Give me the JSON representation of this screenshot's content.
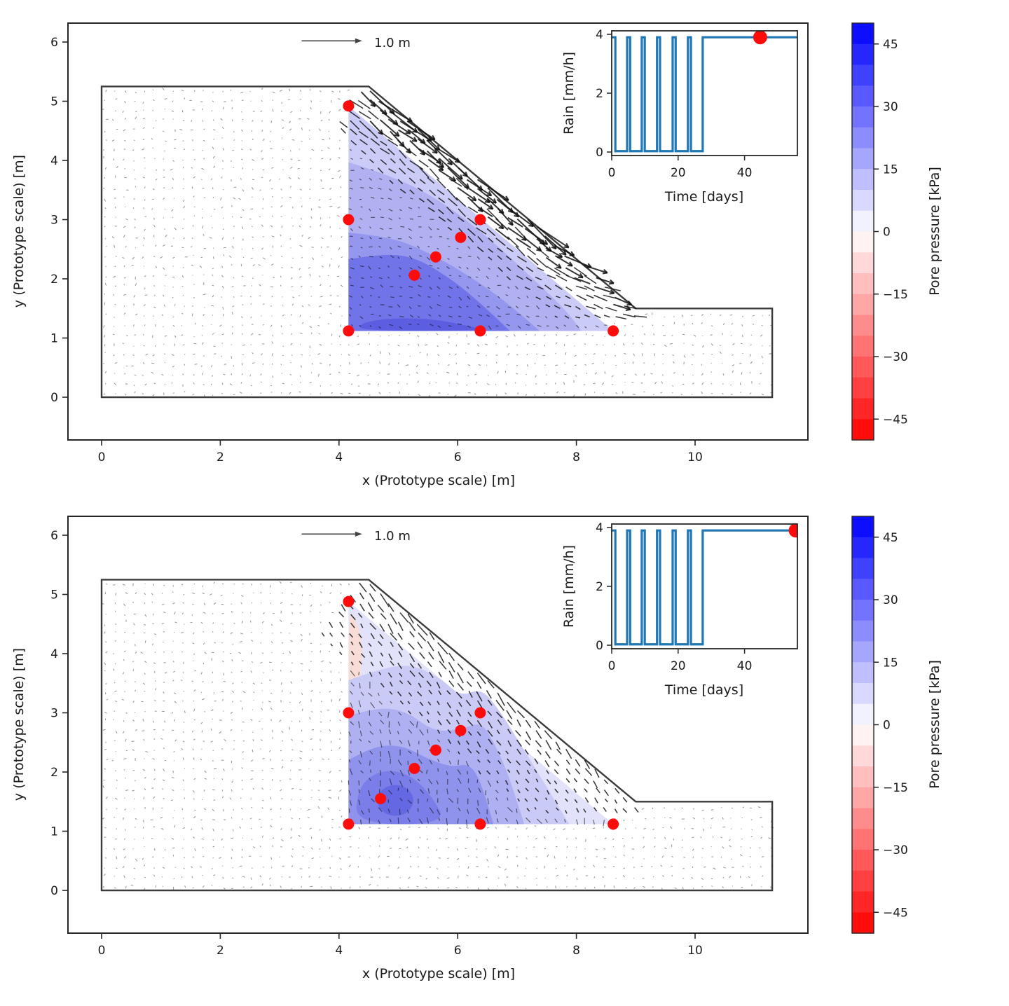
{
  "chart_data": [
    {
      "type": "contour-quiver",
      "xlabel": "x (Prototype scale) [m]",
      "ylabel": "y (Prototype scale) [m]",
      "xticks": [
        0,
        2,
        4,
        6,
        8,
        10
      ],
      "yticks": [
        0,
        1,
        2,
        3,
        4,
        5,
        6
      ],
      "xlim": [
        -0.57,
        11.9
      ],
      "ylim": [
        -0.72,
        6.32
      ],
      "quiver_key": {
        "label": "1.0 m",
        "length_m": 1.0
      },
      "soil_outline": [
        [
          0,
          0
        ],
        [
          0,
          5.25
        ],
        [
          4.5,
          5.25
        ],
        [
          9,
          1.5
        ],
        [
          11.3,
          1.5
        ],
        [
          11.3,
          0
        ]
      ],
      "wet_region": [
        [
          4.16,
          4.92
        ],
        [
          4.16,
          1.12
        ],
        [
          8.62,
          1.12
        ]
      ],
      "pore_pressure_bands": [
        {
          "level_kpa": 12.5,
          "color": "#cbcbf7",
          "shape": "polygon",
          "points": [
            [
              4.16,
              4.92
            ],
            [
              4.16,
              1.12
            ],
            [
              8.62,
              1.12
            ]
          ]
        },
        {
          "level_kpa": 17.5,
          "color": "#b1b1f2",
          "shape": "band",
          "points": [
            [
              4.16,
              3.97
            ],
            [
              4.95,
              3.72
            ],
            [
              5.75,
              3.3
            ],
            [
              6.55,
              2.67
            ],
            [
              7.25,
              2.02
            ],
            [
              7.9,
              1.4
            ],
            [
              8.08,
              1.12
            ]
          ]
        },
        {
          "level_kpa": 22.5,
          "color": "#9597ee",
          "shape": "band",
          "points": [
            [
              4.16,
              2.78
            ],
            [
              4.85,
              2.72
            ],
            [
              5.5,
              2.45
            ],
            [
              6.2,
              2.05
            ],
            [
              6.9,
              1.55
            ],
            [
              7.38,
              1.12
            ]
          ]
        },
        {
          "level_kpa": 27.5,
          "color": "#7173e8",
          "shape": "band",
          "points": [
            [
              4.16,
              2.33
            ],
            [
              4.7,
              2.42
            ],
            [
              5.25,
              2.38
            ],
            [
              5.85,
              2.03
            ],
            [
              6.4,
              1.58
            ],
            [
              6.88,
              1.12
            ]
          ]
        },
        {
          "level_kpa": 32.5,
          "color": "#5c5ee2",
          "shape": "blob",
          "points": [
            [
              4.3,
              1.12
            ],
            [
              4.4,
              1.27
            ],
            [
              4.95,
              1.34
            ],
            [
              5.6,
              1.32
            ],
            [
              6.2,
              1.2
            ],
            [
              6.52,
              1.12
            ]
          ]
        }
      ],
      "scatter": {
        "color": "#ff0b0b",
        "points": [
          [
            4.16,
            4.92
          ],
          [
            4.16,
            3.0
          ],
          [
            6.38,
            3.0
          ],
          [
            6.05,
            2.7
          ],
          [
            5.63,
            2.37
          ],
          [
            5.27,
            2.06
          ],
          [
            4.16,
            1.12
          ],
          [
            6.38,
            1.12
          ],
          [
            8.62,
            1.12
          ]
        ]
      },
      "quiver": {
        "grid_spacing_m": 0.165,
        "seed": 11,
        "slope_band": {
          "max_len_m": 0.6,
          "decay_m": 0.4,
          "angle_deg": -40,
          "extent_m": 1.0
        },
        "interior": {
          "len_m": 0.05,
          "angle_deg": -25
        },
        "background_len_m": 0.03
      },
      "inset": {
        "xlabel": "Time [days]",
        "ylabel": "Rain [mm/h]",
        "xticks": [
          0,
          20,
          40
        ],
        "yticks": [
          0,
          2,
          4
        ],
        "xlim": [
          0,
          55.7
        ],
        "ylim": [
          0,
          4.12
        ],
        "rain_mm_h": 3.9,
        "pulse_days": [
          [
            0,
            1.1
          ],
          [
            4.65,
            5.55
          ],
          [
            9.05,
            9.95
          ],
          [
            13.65,
            14.55
          ],
          [
            18.35,
            19.25
          ],
          [
            22.95,
            23.85
          ]
        ],
        "continuous_rain_days": [
          27.4,
          55.7
        ],
        "marker": {
          "day": 44.7,
          "rain": 3.9
        }
      },
      "colorbar": {
        "label": "Pore pressure [kPa]",
        "ticks": [
          45,
          30,
          15,
          0,
          -15,
          -30,
          -45
        ],
        "vmin": -50,
        "vmax": 50,
        "n_bands": 20,
        "cmap": "blue-white-red"
      }
    },
    {
      "type": "contour-quiver",
      "xlabel": "x (Prototype scale) [m]",
      "ylabel": "y (Prototype scale) [m]",
      "xticks": [
        0,
        2,
        4,
        6,
        8,
        10
      ],
      "yticks": [
        0,
        1,
        2,
        3,
        4,
        5,
        6
      ],
      "xlim": [
        -0.57,
        11.9
      ],
      "ylim": [
        -0.72,
        6.32
      ],
      "quiver_key": {
        "label": "1.0 m",
        "length_m": 1.0
      },
      "soil_outline": [
        [
          0,
          0
        ],
        [
          0,
          5.25
        ],
        [
          4.5,
          5.25
        ],
        [
          9,
          1.5
        ],
        [
          11.3,
          1.5
        ],
        [
          11.3,
          0
        ]
      ],
      "wet_region": [
        [
          4.16,
          4.88
        ],
        [
          4.16,
          1.12
        ],
        [
          8.62,
          1.12
        ]
      ],
      "pore_pressure_bands": [
        {
          "level_kpa": 7.5,
          "color": "#e2e2fa",
          "shape": "polygon",
          "points": [
            [
              4.16,
              4.88
            ],
            [
              4.16,
              1.12
            ],
            [
              8.62,
              1.12
            ]
          ]
        },
        {
          "level_kpa": -5,
          "color": "#f7ddd6",
          "shape": "blob",
          "points": [
            [
              4.16,
              4.78
            ],
            [
              4.31,
              4.52
            ],
            [
              4.4,
              4.12
            ],
            [
              4.37,
              3.62
            ],
            [
              4.27,
              3.28
            ],
            [
              4.16,
              3.08
            ]
          ]
        },
        {
          "level_kpa": 12.5,
          "color": "#cacaf7",
          "shape": "band",
          "points": [
            [
              4.16,
              3.55
            ],
            [
              4.65,
              3.73
            ],
            [
              5.2,
              3.83
            ],
            [
              5.7,
              3.6
            ],
            [
              6.05,
              3.27
            ],
            [
              6.4,
              3.42
            ],
            [
              6.72,
              3.02
            ],
            [
              7.05,
              2.48
            ],
            [
              7.45,
              1.83
            ],
            [
              7.88,
              1.12
            ]
          ]
        },
        {
          "level_kpa": 17.5,
          "color": "#aeb0f2",
          "shape": "band",
          "points": [
            [
              4.16,
              2.95
            ],
            [
              4.65,
              3.1
            ],
            [
              5.15,
              3.02
            ],
            [
              5.6,
              2.68
            ],
            [
              6.05,
              2.72
            ],
            [
              6.4,
              2.85
            ],
            [
              6.62,
              2.48
            ],
            [
              6.87,
              1.93
            ],
            [
              7.12,
              1.12
            ]
          ]
        },
        {
          "level_kpa": 22.5,
          "color": "#9093ec",
          "shape": "band",
          "points": [
            [
              4.16,
              2.2
            ],
            [
              4.55,
              2.43
            ],
            [
              5.05,
              2.46
            ],
            [
              5.5,
              2.22
            ],
            [
              5.9,
              2.08
            ],
            [
              6.22,
              2.15
            ],
            [
              6.44,
              1.7
            ],
            [
              6.6,
              1.12
            ]
          ]
        },
        {
          "level_kpa": 27.5,
          "color": "#7b7ee8",
          "shape": "blob",
          "points": [
            [
              4.28,
              1.12
            ],
            [
              4.31,
              1.68
            ],
            [
              4.56,
              1.97
            ],
            [
              4.92,
              2.04
            ],
            [
              5.27,
              1.9
            ],
            [
              5.57,
              1.58
            ],
            [
              5.82,
              1.12
            ]
          ]
        },
        {
          "level_kpa": 32.5,
          "color": "#6468e3",
          "shape": "ellipse",
          "cx": 4.95,
          "cy": 1.52,
          "rx": 0.3,
          "ry": 0.26
        }
      ],
      "scatter": {
        "color": "#ff0b0b",
        "points": [
          [
            4.16,
            4.88
          ],
          [
            4.16,
            3.0
          ],
          [
            6.38,
            3.0
          ],
          [
            6.05,
            2.7
          ],
          [
            5.63,
            2.37
          ],
          [
            5.27,
            2.06
          ],
          [
            4.7,
            1.55
          ],
          [
            4.16,
            1.12
          ],
          [
            6.38,
            1.12
          ],
          [
            8.62,
            1.12
          ]
        ]
      },
      "quiver": {
        "grid_spacing_m": 0.165,
        "seed": 23,
        "slope_band": {
          "max_len_m": 0.17,
          "decay_m": 0.6,
          "angle_deg": -55,
          "extent_m": 1.3
        },
        "interior": {
          "len_m": 0.08,
          "angle_deg": -70
        },
        "background_len_m": 0.03
      },
      "inset": {
        "xlabel": "Time [days]",
        "ylabel": "Rain [mm/h]",
        "xticks": [
          0,
          20,
          40
        ],
        "yticks": [
          0,
          2,
          4
        ],
        "xlim": [
          0,
          55.7
        ],
        "ylim": [
          0,
          4.12
        ],
        "rain_mm_h": 3.9,
        "pulse_days": [
          [
            0,
            1.1
          ],
          [
            4.65,
            5.55
          ],
          [
            9.05,
            9.95
          ],
          [
            13.65,
            14.55
          ],
          [
            18.35,
            19.25
          ],
          [
            22.95,
            23.85
          ]
        ],
        "continuous_rain_days": [
          27.4,
          55.7
        ],
        "marker": {
          "day": 55.4,
          "rain": 3.9
        }
      },
      "colorbar": {
        "label": "Pore pressure [kPa]",
        "ticks": [
          45,
          30,
          15,
          0,
          -15,
          -30,
          -45
        ],
        "vmin": -50,
        "vmax": 50,
        "n_bands": 20,
        "cmap": "blue-white-red"
      }
    }
  ]
}
